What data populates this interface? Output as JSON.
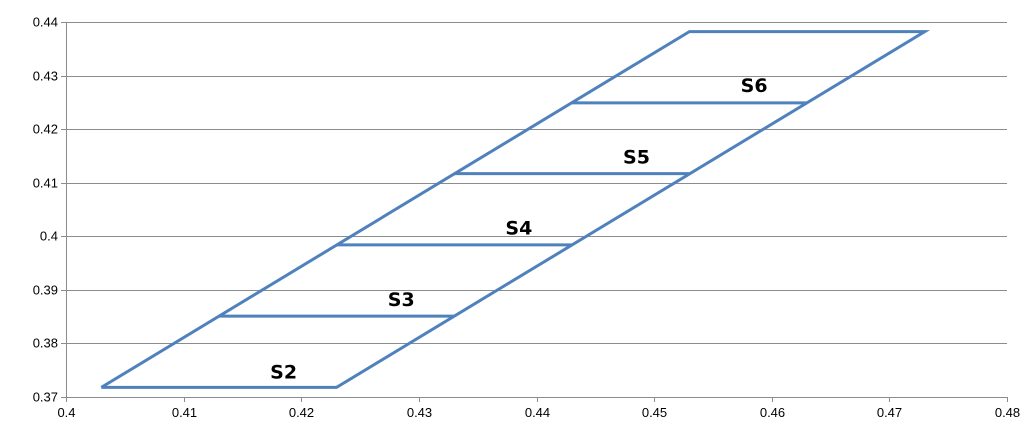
{
  "chart_data": {
    "type": "scatter",
    "title": "",
    "xlabel": "",
    "ylabel": "",
    "xlim": [
      0.4,
      0.48
    ],
    "ylim": [
      0.37,
      0.44
    ],
    "x_ticks": [
      "0.4",
      "0.41",
      "0.42",
      "0.43",
      "0.44",
      "0.45",
      "0.46",
      "0.47",
      "0.48"
    ],
    "y_ticks": [
      "0.37",
      "0.38",
      "0.39",
      "0.4",
      "0.41",
      "0.42",
      "0.43",
      "0.44"
    ],
    "grid": "horizontal",
    "color": "#4f81bd",
    "series": [
      {
        "points": [
          [
            0.403,
            0.3718
          ],
          [
            0.423,
            0.3718
          ],
          [
            0.473,
            0.4382
          ],
          [
            0.453,
            0.4382
          ],
          [
            0.403,
            0.3718
          ]
        ]
      },
      {
        "points": [
          [
            0.413,
            0.3851
          ],
          [
            0.433,
            0.3851
          ]
        ]
      },
      {
        "points": [
          [
            0.423,
            0.3984
          ],
          [
            0.443,
            0.3984
          ]
        ]
      },
      {
        "points": [
          [
            0.433,
            0.4117
          ],
          [
            0.453,
            0.4117
          ]
        ]
      },
      {
        "points": [
          [
            0.443,
            0.4249
          ],
          [
            0.463,
            0.4249
          ]
        ]
      }
    ],
    "annotations": [
      {
        "text": "S2",
        "x": 0.4185,
        "y": 0.3748
      },
      {
        "text": "S3",
        "x": 0.4285,
        "y": 0.3883
      },
      {
        "text": "S4",
        "x": 0.4385,
        "y": 0.4016
      },
      {
        "text": "S5",
        "x": 0.4485,
        "y": 0.4149
      },
      {
        "text": "S6",
        "x": 0.4585,
        "y": 0.4282
      }
    ]
  }
}
